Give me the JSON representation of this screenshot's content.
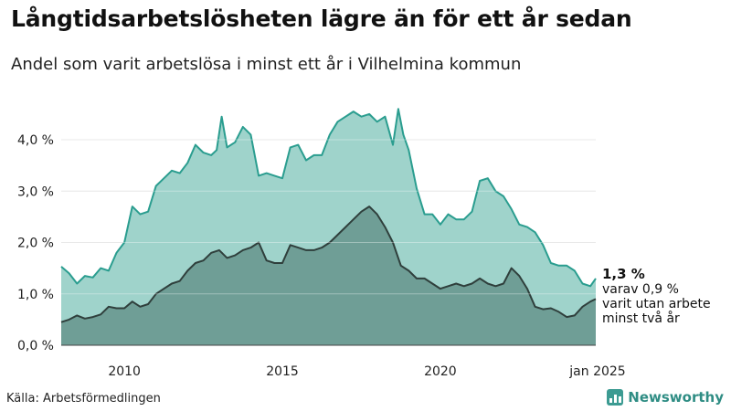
{
  "header": {
    "title": "Långtidsarbetslösheten lägre än för ett år sedan",
    "subtitle": "Andel som varit arbetslösa i minst ett år i Vilhelmina kommun"
  },
  "footer": {
    "source": "Källa: Arbetsförmedlingen",
    "brand": "Newsworthy"
  },
  "colors": {
    "total_fill": "#9fd3cb",
    "total_line": "#2a9d8f",
    "twoyear_fill": "#6f9e96",
    "twoyear_line": "#2f3f3c",
    "grid": "#dddddd",
    "brand": "#2f8d84"
  },
  "icons": {
    "brand": "bar-chart-icon"
  },
  "chart_data": {
    "type": "area",
    "x_unit": "year",
    "xlim": [
      2008.0,
      2024.92
    ],
    "ylim": [
      0,
      4.8
    ],
    "y_ticks": [
      0,
      1,
      2,
      3,
      4
    ],
    "y_tick_labels": [
      "0,0 %",
      "1,0 %",
      "2,0 %",
      "3,0 %",
      "4,0 %"
    ],
    "x_ticks": [
      2010,
      2015,
      2020,
      2024.92
    ],
    "x_tick_labels": [
      "2010",
      "2015",
      "2020",
      "jan 2025"
    ],
    "grid": true,
    "annotations": {
      "end_value": "1,3 %",
      "line1": "varav 0,9 %",
      "line2": "varit utan arbete",
      "line3": "minst två år"
    },
    "series": [
      {
        "key": "total",
        "points": [
          [
            2008.0,
            1.53
          ],
          [
            2008.25,
            1.4
          ],
          [
            2008.5,
            1.2
          ],
          [
            2008.75,
            1.35
          ],
          [
            2009.0,
            1.32
          ],
          [
            2009.25,
            1.5
          ],
          [
            2009.5,
            1.45
          ],
          [
            2009.75,
            1.8
          ],
          [
            2010.0,
            2.0
          ],
          [
            2010.25,
            2.7
          ],
          [
            2010.5,
            2.55
          ],
          [
            2010.75,
            2.6
          ],
          [
            2011.0,
            3.1
          ],
          [
            2011.25,
            3.25
          ],
          [
            2011.5,
            3.4
          ],
          [
            2011.75,
            3.35
          ],
          [
            2012.0,
            3.55
          ],
          [
            2012.25,
            3.9
          ],
          [
            2012.5,
            3.75
          ],
          [
            2012.75,
            3.7
          ],
          [
            2012.92,
            3.8
          ],
          [
            2013.08,
            4.45
          ],
          [
            2013.25,
            3.85
          ],
          [
            2013.5,
            3.95
          ],
          [
            2013.75,
            4.25
          ],
          [
            2014.0,
            4.1
          ],
          [
            2014.25,
            3.3
          ],
          [
            2014.5,
            3.35
          ],
          [
            2014.75,
            3.3
          ],
          [
            2015.0,
            3.25
          ],
          [
            2015.25,
            3.85
          ],
          [
            2015.5,
            3.9
          ],
          [
            2015.75,
            3.6
          ],
          [
            2016.0,
            3.7
          ],
          [
            2016.25,
            3.7
          ],
          [
            2016.5,
            4.1
          ],
          [
            2016.75,
            4.35
          ],
          [
            2017.0,
            4.45
          ],
          [
            2017.25,
            4.55
          ],
          [
            2017.5,
            4.45
          ],
          [
            2017.75,
            4.5
          ],
          [
            2018.0,
            4.35
          ],
          [
            2018.25,
            4.45
          ],
          [
            2018.5,
            3.9
          ],
          [
            2018.67,
            4.6
          ],
          [
            2018.83,
            4.1
          ],
          [
            2019.0,
            3.8
          ],
          [
            2019.25,
            3.05
          ],
          [
            2019.5,
            2.55
          ],
          [
            2019.75,
            2.55
          ],
          [
            2020.0,
            2.35
          ],
          [
            2020.25,
            2.55
          ],
          [
            2020.5,
            2.45
          ],
          [
            2020.75,
            2.45
          ],
          [
            2021.0,
            2.6
          ],
          [
            2021.25,
            3.2
          ],
          [
            2021.5,
            3.25
          ],
          [
            2021.75,
            3.0
          ],
          [
            2022.0,
            2.9
          ],
          [
            2022.25,
            2.65
          ],
          [
            2022.5,
            2.35
          ],
          [
            2022.75,
            2.3
          ],
          [
            2023.0,
            2.2
          ],
          [
            2023.25,
            1.95
          ],
          [
            2023.5,
            1.6
          ],
          [
            2023.75,
            1.55
          ],
          [
            2024.0,
            1.55
          ],
          [
            2024.25,
            1.45
          ],
          [
            2024.5,
            1.2
          ],
          [
            2024.75,
            1.15
          ],
          [
            2024.92,
            1.3
          ]
        ]
      },
      {
        "key": "two_years",
        "points": [
          [
            2008.0,
            0.45
          ],
          [
            2008.25,
            0.5
          ],
          [
            2008.5,
            0.58
          ],
          [
            2008.75,
            0.52
          ],
          [
            2009.0,
            0.55
          ],
          [
            2009.25,
            0.6
          ],
          [
            2009.5,
            0.75
          ],
          [
            2009.75,
            0.72
          ],
          [
            2010.0,
            0.72
          ],
          [
            2010.25,
            0.85
          ],
          [
            2010.5,
            0.75
          ],
          [
            2010.75,
            0.8
          ],
          [
            2011.0,
            1.0
          ],
          [
            2011.25,
            1.1
          ],
          [
            2011.5,
            1.2
          ],
          [
            2011.75,
            1.25
          ],
          [
            2012.0,
            1.45
          ],
          [
            2012.25,
            1.6
          ],
          [
            2012.5,
            1.65
          ],
          [
            2012.75,
            1.8
          ],
          [
            2013.0,
            1.85
          ],
          [
            2013.25,
            1.7
          ],
          [
            2013.5,
            1.75
          ],
          [
            2013.75,
            1.85
          ],
          [
            2014.0,
            1.9
          ],
          [
            2014.25,
            2.0
          ],
          [
            2014.5,
            1.65
          ],
          [
            2014.75,
            1.6
          ],
          [
            2015.0,
            1.6
          ],
          [
            2015.25,
            1.95
          ],
          [
            2015.5,
            1.9
          ],
          [
            2015.75,
            1.85
          ],
          [
            2016.0,
            1.85
          ],
          [
            2016.25,
            1.9
          ],
          [
            2016.5,
            2.0
          ],
          [
            2016.75,
            2.15
          ],
          [
            2017.0,
            2.3
          ],
          [
            2017.25,
            2.45
          ],
          [
            2017.5,
            2.6
          ],
          [
            2017.75,
            2.7
          ],
          [
            2018.0,
            2.55
          ],
          [
            2018.25,
            2.3
          ],
          [
            2018.5,
            2.0
          ],
          [
            2018.75,
            1.55
          ],
          [
            2019.0,
            1.45
          ],
          [
            2019.25,
            1.3
          ],
          [
            2019.5,
            1.3
          ],
          [
            2019.75,
            1.2
          ],
          [
            2020.0,
            1.1
          ],
          [
            2020.25,
            1.15
          ],
          [
            2020.5,
            1.2
          ],
          [
            2020.75,
            1.15
          ],
          [
            2021.0,
            1.2
          ],
          [
            2021.25,
            1.3
          ],
          [
            2021.5,
            1.2
          ],
          [
            2021.75,
            1.15
          ],
          [
            2022.0,
            1.2
          ],
          [
            2022.25,
            1.5
          ],
          [
            2022.5,
            1.35
          ],
          [
            2022.75,
            1.1
          ],
          [
            2023.0,
            0.75
          ],
          [
            2023.25,
            0.7
          ],
          [
            2023.5,
            0.72
          ],
          [
            2023.75,
            0.65
          ],
          [
            2024.0,
            0.55
          ],
          [
            2024.25,
            0.58
          ],
          [
            2024.5,
            0.75
          ],
          [
            2024.75,
            0.85
          ],
          [
            2024.92,
            0.9
          ]
        ]
      }
    ]
  }
}
